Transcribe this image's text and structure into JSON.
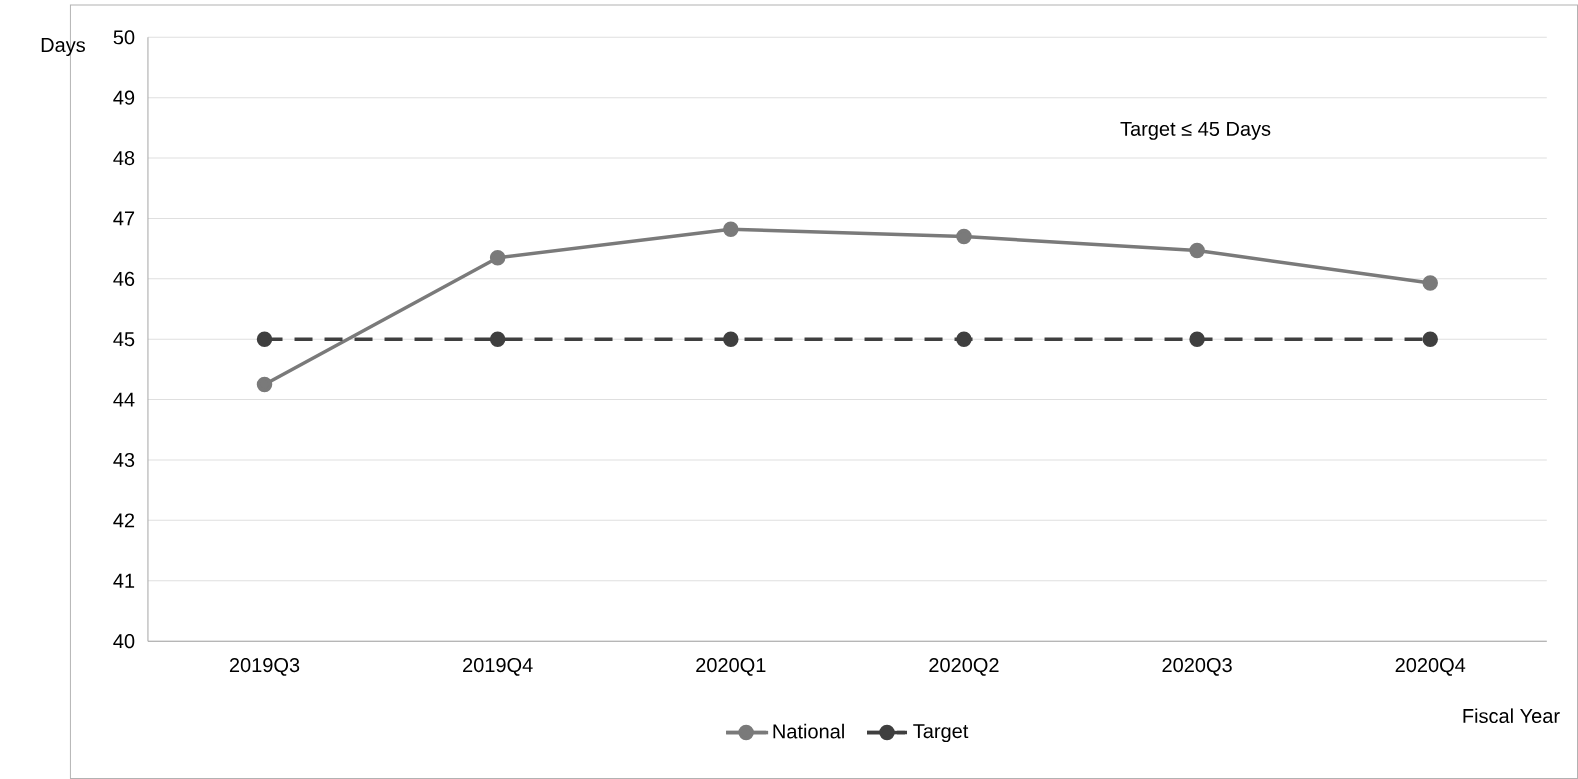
{
  "chart_data": {
    "type": "line",
    "xlabel": "Fiscal Year",
    "ylabel": "Days",
    "categories": [
      "2019Q3",
      "2019Q4",
      "2020Q1",
      "2020Q2",
      "2020Q3",
      "2020Q4"
    ],
    "series": [
      {
        "name": "National",
        "color": "#7a7a7a",
        "line_style": "solid",
        "values": [
          44.25,
          46.35,
          46.82,
          46.7,
          46.47,
          45.93
        ]
      },
      {
        "name": "Target",
        "color": "#3f3f3f",
        "line_style": "dashed",
        "values": [
          45,
          45,
          45,
          45,
          45,
          45
        ]
      }
    ],
    "marker": "circle",
    "ylim": [
      40,
      50
    ],
    "yticks": [
      40,
      41,
      42,
      43,
      44,
      45,
      46,
      47,
      48,
      49,
      50
    ],
    "grid": "y",
    "legend": "bottom",
    "annotations": [
      "Target ≤ 45 Days"
    ]
  }
}
